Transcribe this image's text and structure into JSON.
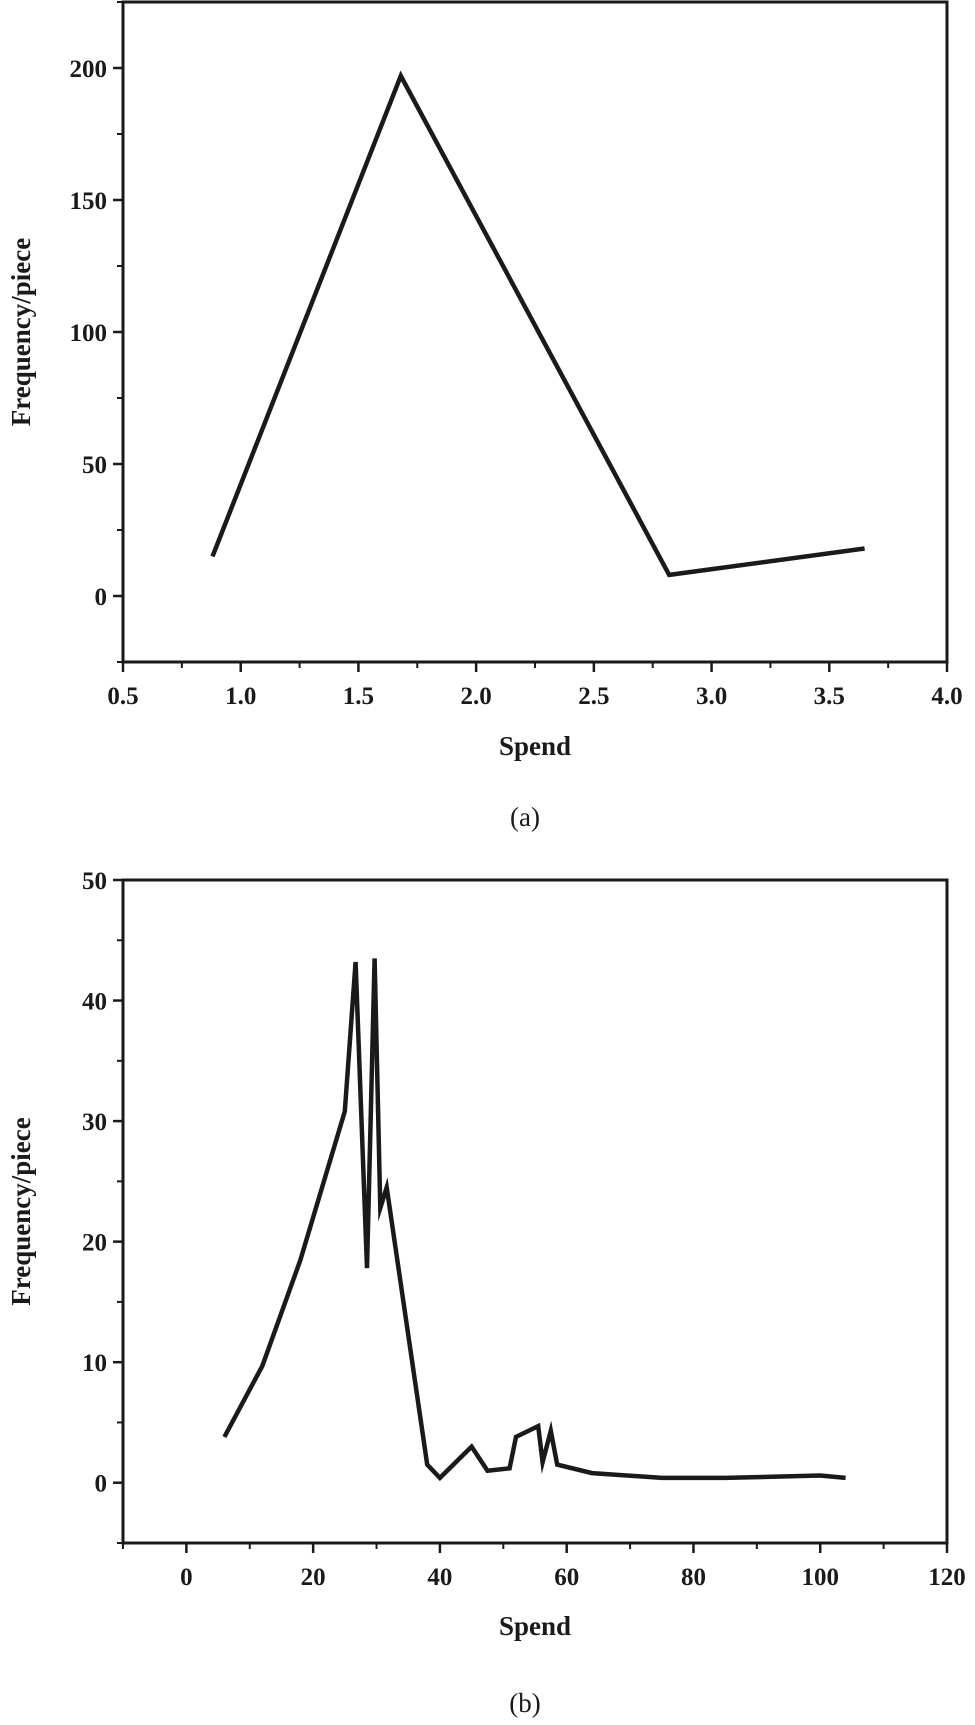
{
  "chart_data": [
    {
      "type": "line",
      "caption": "(a)",
      "xlabel": "Spend",
      "ylabel": "Frequency/piece",
      "xlim": [
        0.5,
        4.0
      ],
      "ylim": [
        -25,
        225
      ],
      "xticks": [
        0.5,
        1.0,
        1.5,
        2.0,
        2.5,
        3.0,
        3.5,
        4.0
      ],
      "xtick_labels": [
        "0.5",
        "1.0",
        "1.5",
        "2.0",
        "2.5",
        "3.0",
        "3.5",
        "4.0"
      ],
      "yticks": [
        0,
        50,
        100,
        150,
        200
      ],
      "ytick_labels": [
        "0",
        "50",
        "100",
        "150",
        "200"
      ],
      "grid": false,
      "series": [
        {
          "x": [
            0.88,
            1.68,
            2.82,
            3.65
          ],
          "y": [
            15,
            197,
            8,
            18
          ]
        }
      ]
    },
    {
      "type": "line",
      "caption": "(b)",
      "xlabel": "Spend",
      "ylabel": "Frequency/piece",
      "xlim": [
        -10,
        120
      ],
      "ylim": [
        -5,
        50
      ],
      "xticks": [
        0,
        20,
        40,
        60,
        80,
        100,
        120
      ],
      "xtick_labels": [
        "0",
        "20",
        "40",
        "60",
        "80",
        "100",
        "120"
      ],
      "yticks": [
        0,
        10,
        20,
        30,
        40,
        50
      ],
      "ytick_labels": [
        "0",
        "10",
        "20",
        "30",
        "40",
        "50"
      ],
      "grid": false,
      "series": [
        {
          "x": [
            6,
            12,
            18,
            25,
            26.7,
            28.5,
            29.7,
            30.6,
            31.6,
            38,
            40,
            45,
            47.5,
            51,
            52,
            55.5,
            56.2,
            57.5,
            58.5,
            64,
            75,
            85,
            100,
            104
          ],
          "y": [
            3.8,
            9.7,
            18.5,
            30.8,
            43.2,
            17.8,
            43.5,
            22.8,
            24.5,
            1.5,
            0.4,
            3,
            1,
            1.2,
            3.8,
            4.7,
            1.7,
            4.3,
            1.5,
            0.8,
            0.4,
            0.4,
            0.6,
            0.4
          ]
        }
      ]
    }
  ]
}
